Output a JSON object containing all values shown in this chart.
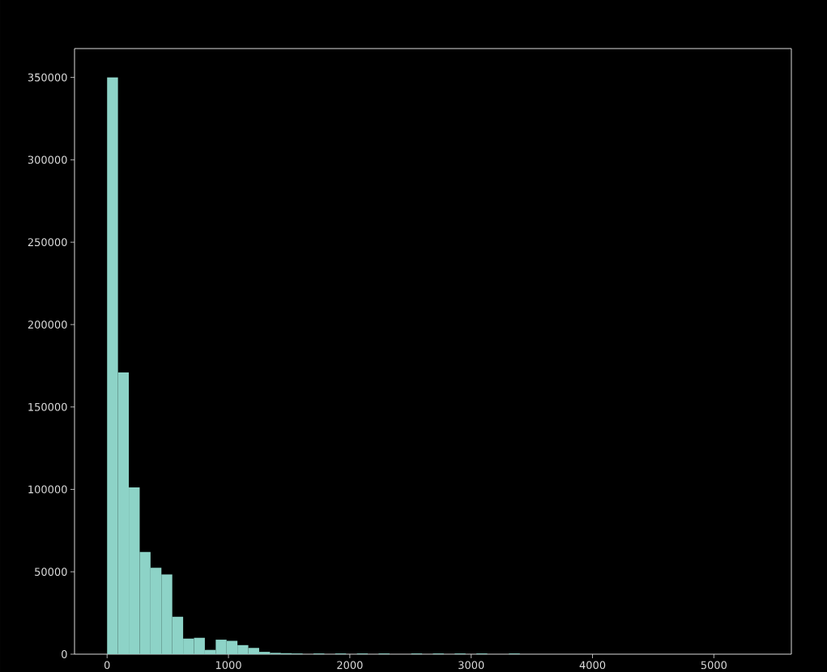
{
  "chart_data": {
    "type": "histogram",
    "color": "#8dd3c7",
    "bins": [
      0,
      89.5,
      179,
      268.5,
      358,
      447.5,
      537,
      626.5,
      716,
      805.5,
      895,
      984.5,
      1074,
      1163.5,
      1253,
      1342.5,
      1432,
      1521.5,
      1611,
      1700.5,
      1790,
      1879.5,
      1969,
      2058.5,
      2148,
      2237.5,
      2327,
      2416.5,
      2506,
      2595.5,
      2685,
      2774.5,
      2864,
      2953.5,
      3043,
      3132.5,
      3222,
      3311.5,
      3401,
      3490.5,
      3580,
      3669.5,
      3759,
      3848.5,
      3938,
      4027.5,
      4117,
      4206.5,
      4296,
      4385.5,
      4475,
      4564.5,
      4654,
      4743.5,
      4833,
      4922.5,
      5012,
      5101.5,
      5191,
      5280.5,
      5370
    ],
    "values": [
      350000,
      171000,
      101200,
      62000,
      52500,
      48400,
      22700,
      9500,
      10000,
      2600,
      8800,
      8100,
      5500,
      3800,
      1400,
      800,
      600,
      400,
      0,
      400,
      0,
      400,
      0,
      400,
      0,
      400,
      0,
      0,
      400,
      0,
      400,
      0,
      400,
      0,
      400,
      0,
      0,
      400,
      0,
      0,
      0,
      0,
      0,
      0,
      0,
      0,
      0,
      0,
      0,
      0,
      0,
      0,
      0,
      0,
      0,
      0,
      0,
      0,
      0,
      0
    ],
    "xlim": [
      -268.5,
      5638.5
    ],
    "ylim": [
      0,
      367500
    ],
    "xticks": [
      0,
      1000,
      2000,
      3000,
      4000,
      5000
    ],
    "yticks": [
      0,
      50000,
      100000,
      150000,
      200000,
      250000,
      300000,
      350000
    ]
  }
}
